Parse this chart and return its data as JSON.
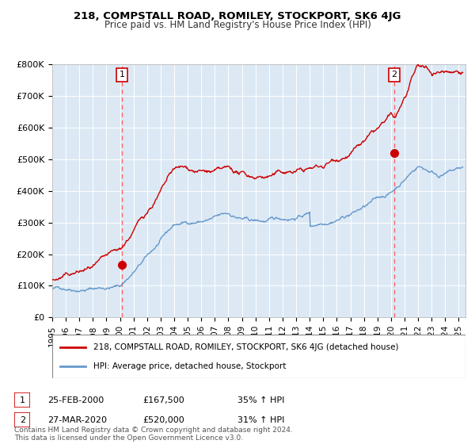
{
  "title": "218, COMPSTALL ROAD, ROMILEY, STOCKPORT, SK6 4JG",
  "subtitle": "Price paid vs. HM Land Registry's House Price Index (HPI)",
  "background_color": "#dce9f5",
  "plot_bg_color": "#dce9f5",
  "outer_bg_color": "#ffffff",
  "red_line_color": "#cc0000",
  "blue_line_color": "#6699cc",
  "dashed_line_color": "#ff6666",
  "ylim": [
    0,
    800000
  ],
  "yticks": [
    0,
    100000,
    200000,
    300000,
    400000,
    500000,
    600000,
    700000,
    800000
  ],
  "ytick_labels": [
    "£0",
    "£100K",
    "£200K",
    "£300K",
    "£400K",
    "£500K",
    "£600K",
    "£700K",
    "£800K"
  ],
  "xlim_start": 1995.0,
  "xlim_end": 2025.5,
  "xtick_years": [
    1995,
    1996,
    1997,
    1998,
    1999,
    2000,
    2001,
    2002,
    2003,
    2004,
    2005,
    2006,
    2007,
    2008,
    2009,
    2010,
    2011,
    2012,
    2013,
    2014,
    2015,
    2016,
    2017,
    2018,
    2019,
    2020,
    2021,
    2022,
    2023,
    2024,
    2025
  ],
  "marker1_x": 2000.15,
  "marker1_y": 167500,
  "marker2_x": 2020.23,
  "marker2_y": 520000,
  "vline1_x": 2000.15,
  "vline2_x": 2020.23,
  "label1_text": "1",
  "label2_text": "2",
  "legend_line1": "218, COMPSTALL ROAD, ROMILEY, STOCKPORT, SK6 4JG (detached house)",
  "legend_line2": "HPI: Average price, detached house, Stockport",
  "note1_date": "25-FEB-2000",
  "note1_price": "£167,500",
  "note1_hpi": "35% ↑ HPI",
  "note2_date": "27-MAR-2020",
  "note2_price": "£520,000",
  "note2_hpi": "31% ↑ HPI",
  "footer": "Contains HM Land Registry data © Crown copyright and database right 2024.\nThis data is licensed under the Open Government Licence v3.0."
}
